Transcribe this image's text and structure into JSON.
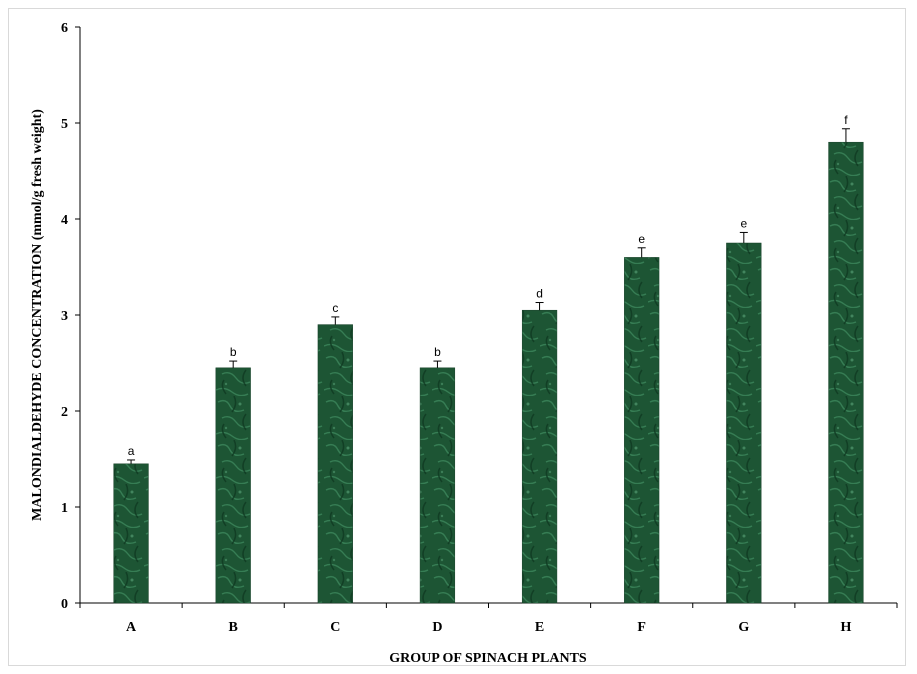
{
  "chart_data": {
    "type": "bar",
    "title": "",
    "xlabel": "GROUP OF SPINACH PLANTS",
    "ylabel": "MALONDIALDEHYDE CONCENTRATION (mmol/g fresh weight)",
    "ylim": [
      0,
      6
    ],
    "yticks": [
      "0",
      "1",
      "2",
      "3",
      "4",
      "5",
      "6"
    ],
    "grid": false,
    "legend": "none",
    "categories": [
      "A",
      "B",
      "C",
      "D",
      "E",
      "F",
      "G",
      "H"
    ],
    "values": [
      1.45,
      2.45,
      2.9,
      2.45,
      3.05,
      3.6,
      3.75,
      4.8
    ],
    "errors": [
      0.04,
      0.07,
      0.08,
      0.07,
      0.08,
      0.1,
      0.11,
      0.14
    ],
    "significance_letters": [
      "a",
      "b",
      "c",
      "b",
      "d",
      "e",
      "e",
      "f"
    ],
    "bar_color": "#1f5a36",
    "bar_texture_color": "#3a8a5c"
  }
}
